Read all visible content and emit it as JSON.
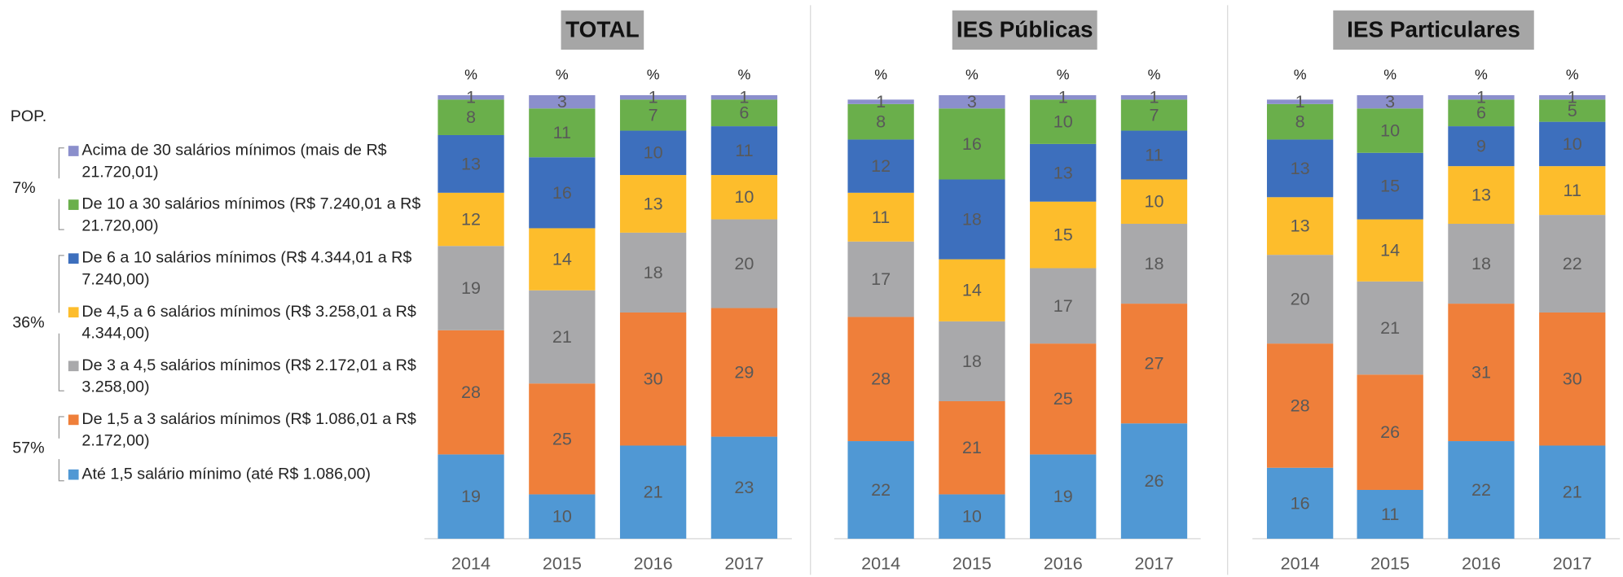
{
  "legend": {
    "title": "POP.",
    "items": [
      {
        "name": "Acima de 30 salários mínimos (mais de R$ 21.720,01)",
        "color": "#8b8fcc"
      },
      {
        "name": "De 10 a 30 salários mínimos (R$ 7.240,01 a R$ 21.720,00)",
        "color": "#6aaf4b"
      },
      {
        "name": "De 6 a 10 salários mínimos (R$ 4.344,01 a R$ 7.240,00)",
        "color": "#3d6fbd"
      },
      {
        "name": "De 4,5 a 6 salários mínimos (R$ 3.258,01 a R$ 4.344,00)",
        "color": "#fdbd2c"
      },
      {
        "name": "De 3 a 4,5 salários mínimos (R$ 2.172,01 a R$ 3.258,00)",
        "color": "#a9a9ab"
      },
      {
        "name": "De 1,5 a 3 salários mínimos (R$ 1.086,01 a R$ 2.172,00)",
        "color": "#ef7f3a"
      },
      {
        "name": "Até 1,5 salário mínimo (até R$ 1.086,00)",
        "color": "#5098d4"
      }
    ],
    "groups": [
      {
        "label": "7%",
        "first": 0,
        "last": 1
      },
      {
        "label": "36%",
        "first": 2,
        "last": 4
      },
      {
        "label": "57%",
        "first": 5,
        "last": 6
      }
    ]
  },
  "chart_data": [
    {
      "type": "stacked_bar",
      "title": "TOTAL",
      "unit_label": "%",
      "categories": [
        "2014",
        "2015",
        "2016",
        "2017"
      ],
      "ylim": [
        0,
        100
      ],
      "series": [
        {
          "values": [
            1,
            3,
            1,
            1
          ]
        },
        {
          "values": [
            8,
            11,
            7,
            6
          ]
        },
        {
          "values": [
            13,
            16,
            10,
            11
          ]
        },
        {
          "values": [
            12,
            14,
            13,
            10
          ]
        },
        {
          "values": [
            19,
            21,
            18,
            20
          ]
        },
        {
          "values": [
            28,
            25,
            30,
            29
          ]
        },
        {
          "values": [
            19,
            10,
            21,
            23
          ]
        }
      ]
    },
    {
      "type": "stacked_bar",
      "title": "IES Públicas",
      "unit_label": "%",
      "categories": [
        "2014",
        "2015",
        "2016",
        "2017"
      ],
      "ylim": [
        0,
        100
      ],
      "series": [
        {
          "values": [
            1,
            3,
            1,
            1
          ]
        },
        {
          "values": [
            8,
            16,
            10,
            7
          ]
        },
        {
          "values": [
            12,
            18,
            13,
            11
          ]
        },
        {
          "values": [
            11,
            14,
            15,
            10
          ]
        },
        {
          "values": [
            17,
            18,
            17,
            18
          ]
        },
        {
          "values": [
            28,
            21,
            25,
            27
          ]
        },
        {
          "values": [
            22,
            10,
            19,
            26
          ]
        }
      ]
    },
    {
      "type": "stacked_bar",
      "title": "IES Particulares",
      "unit_label": "%",
      "categories": [
        "2014",
        "2015",
        "2016",
        "2017"
      ],
      "ylim": [
        0,
        100
      ],
      "series": [
        {
          "values": [
            1,
            3,
            1,
            1
          ]
        },
        {
          "values": [
            8,
            10,
            6,
            5
          ]
        },
        {
          "values": [
            13,
            15,
            9,
            10
          ]
        },
        {
          "values": [
            13,
            14,
            13,
            11
          ]
        },
        {
          "values": [
            20,
            21,
            18,
            22
          ]
        },
        {
          "values": [
            28,
            26,
            31,
            30
          ]
        },
        {
          "values": [
            16,
            11,
            22,
            21
          ]
        }
      ]
    }
  ]
}
